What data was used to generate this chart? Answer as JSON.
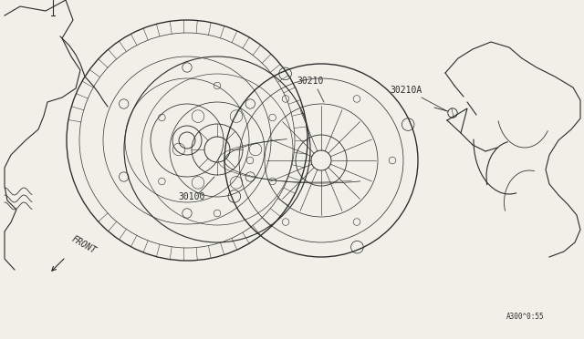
{
  "background_color": "#f0efe8",
  "line_color": "#2a2a2a",
  "line_width": 0.8,
  "labels": {
    "30100": [
      2.18,
      1.55
    ],
    "30210": [
      3.45,
      2.78
    ],
    "30210A": [
      4.42,
      2.68
    ],
    "diagram_ref": "A300^0:55"
  },
  "label_fontsize": 7,
  "fig_bg": "#f0efe8"
}
